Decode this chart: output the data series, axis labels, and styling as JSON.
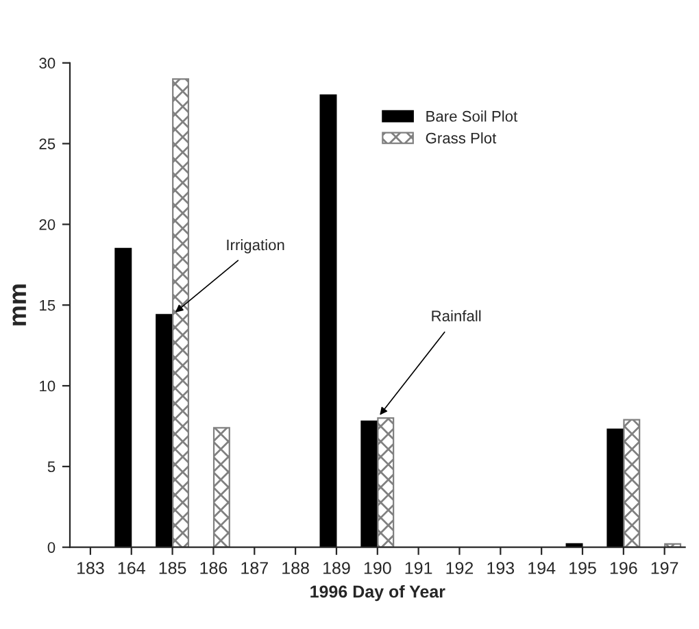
{
  "chart_data": {
    "type": "bar",
    "xlabel": "1996 Day of Year",
    "ylabel": "mm",
    "categories": [
      "183",
      "164",
      "185",
      "186",
      "187",
      "188",
      "189",
      "190",
      "191",
      "192",
      "193",
      "194",
      "195",
      "196",
      "197"
    ],
    "series": [
      {
        "name": "Bare Soil Plot",
        "color": "#000000",
        "values": [
          null,
          18.5,
          14.4,
          null,
          null,
          null,
          28.0,
          7.8,
          null,
          null,
          null,
          null,
          0.2,
          7.3,
          null
        ]
      },
      {
        "name": "Grass Plot",
        "color": "#808080",
        "values": [
          null,
          null,
          29.0,
          7.4,
          null,
          null,
          null,
          8.0,
          null,
          null,
          null,
          null,
          null,
          7.9,
          0.2
        ]
      }
    ],
    "ylim": [
      0,
      30
    ],
    "yticks": [
      0,
      5,
      10,
      15,
      20,
      25,
      30
    ],
    "grid": false,
    "legend": "top right",
    "annotations": [
      {
        "text": "Irrigation",
        "x": "185",
        "y": 14.4
      },
      {
        "text": "Rainfall",
        "x": "190",
        "y": 8.0
      }
    ]
  }
}
